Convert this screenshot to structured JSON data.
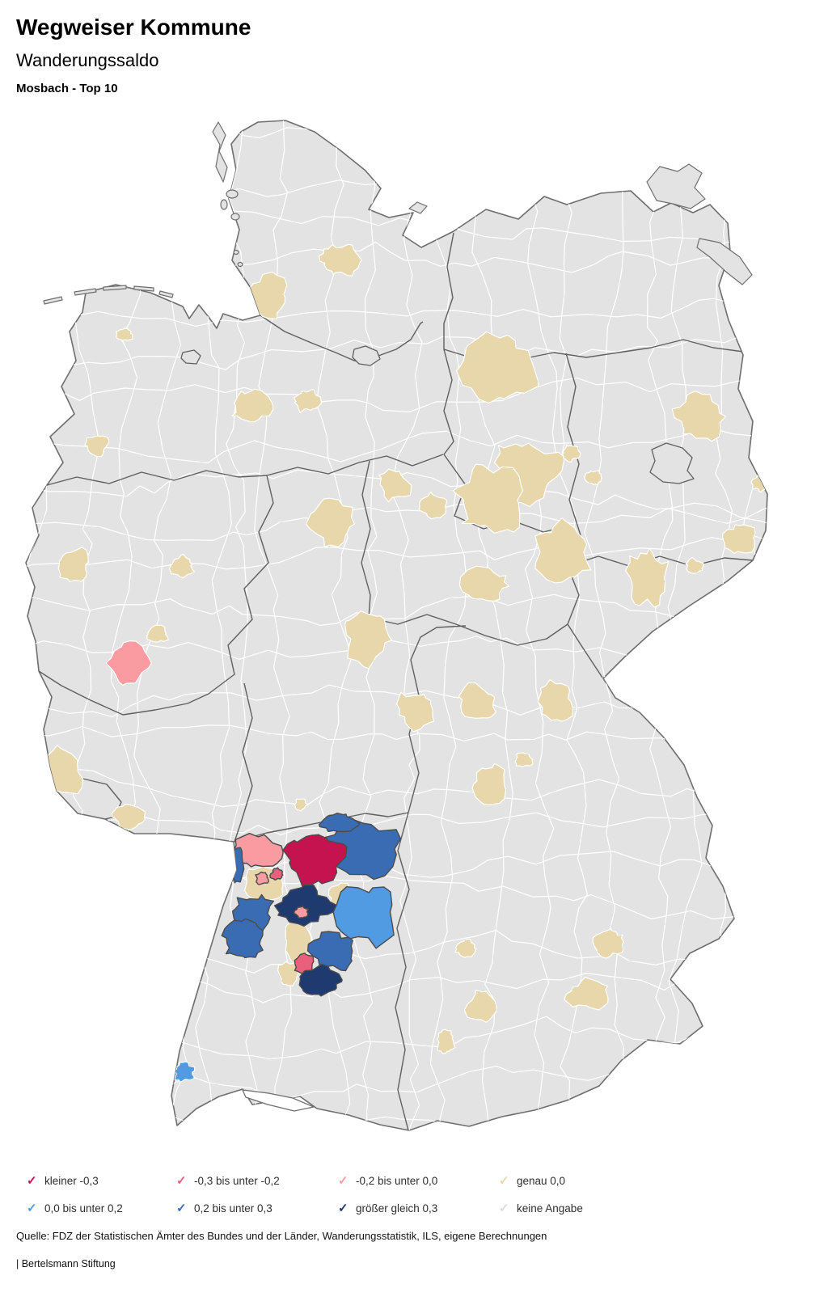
{
  "header": {
    "title": "Wegweiser Kommune",
    "subtitle": "Wanderungssaldo",
    "selection": "Mosbach - Top 10"
  },
  "legend": {
    "check_glyph": "✓",
    "rows": [
      [
        {
          "key": "lt-03",
          "label": "kleiner -0,3"
        },
        {
          "key": "m03-02",
          "label": "-0,3 bis unter -0,2"
        },
        {
          "key": "m02-00",
          "label": "-0,2 bis unter 0,0"
        },
        {
          "key": "eq00",
          "label": "genau 0,0"
        }
      ],
      [
        {
          "key": "p00-02",
          "label": "0,0 bis unter 0,2"
        },
        {
          "key": "p02-03",
          "label": "0,2 bis unter 0,3"
        },
        {
          "key": "ge03",
          "label": "größer gleich 0,3"
        },
        {
          "key": "na",
          "label": "keine Angabe"
        }
      ]
    ]
  },
  "footer": {
    "source": "Quelle: FDZ der Statistischen Ämter des Bundes und der Länder, Wanderungsstatistik, ILS, eigene Berechnungen",
    "attribution": "| Bertelsmann Stiftung"
  },
  "map": {
    "colors": {
      "lt-03": "#c51350",
      "m03-02": "#e8607b",
      "m02-00": "#f99ba1",
      "eq00": "#e7d7ab",
      "p00-02": "#519be2",
      "p02-03": "#3a6cb3",
      "ge03": "#1f3a6e",
      "na": "#dcdcdc"
    },
    "base": {
      "land": "#e3e3e3",
      "district_border": "#ffffff",
      "state_border": "#5f5f5f",
      "coast": "#6e6e6e",
      "water": "#ffffff"
    },
    "region_fields": [
      "category",
      "cx",
      "cy",
      "rx",
      "ry",
      "outlined"
    ],
    "regions": [
      [
        "eq00",
        420,
        322,
        24,
        20,
        0
      ],
      [
        "eq00",
        325,
        368,
        30,
        26,
        0
      ],
      [
        "eq00",
        618,
        452,
        50,
        46,
        0
      ],
      [
        "eq00",
        650,
        582,
        38,
        40,
        0
      ],
      [
        "eq00",
        865,
        515,
        30,
        28,
        0
      ],
      [
        "eq00",
        940,
        598,
        9,
        9,
        0
      ],
      [
        "eq00",
        735,
        591,
        12,
        10,
        0
      ],
      [
        "eq00",
        153,
        414,
        11,
        9,
        0
      ],
      [
        "eq00",
        310,
        502,
        24,
        22,
        0
      ],
      [
        "eq00",
        378,
        495,
        16,
        14,
        0
      ],
      [
        "eq00",
        120,
        550,
        14,
        13,
        0
      ],
      [
        "eq00",
        90,
        698,
        22,
        19,
        0
      ],
      [
        "eq00",
        225,
        700,
        15,
        13,
        0
      ],
      [
        "eq00",
        195,
        785,
        13,
        11,
        0
      ],
      [
        "eq00",
        410,
        648,
        28,
        30,
        0
      ],
      [
        "eq00",
        488,
        600,
        20,
        18,
        0
      ],
      [
        "eq00",
        536,
        626,
        18,
        16,
        0
      ],
      [
        "eq00",
        606,
        618,
        42,
        40,
        0
      ],
      [
        "eq00",
        695,
        683,
        34,
        36,
        0
      ],
      [
        "eq00",
        600,
        725,
        28,
        22,
        0
      ],
      [
        "eq00",
        452,
        792,
        27,
        30,
        0
      ],
      [
        "eq00",
        515,
        878,
        24,
        24,
        0
      ],
      [
        "eq00",
        592,
        868,
        22,
        20,
        0
      ],
      [
        "eq00",
        688,
        868,
        22,
        26,
        0
      ],
      [
        "eq00",
        800,
        715,
        26,
        38,
        0
      ],
      [
        "eq00",
        858,
        700,
        11,
        9,
        0
      ],
      [
        "eq00",
        915,
        665,
        22,
        20,
        0
      ],
      [
        "eq00",
        75,
        955,
        26,
        30,
        0
      ],
      [
        "eq00",
        160,
        1010,
        18,
        16,
        0
      ],
      [
        "eq00",
        605,
        970,
        20,
        26,
        0
      ],
      [
        "eq00",
        648,
        940,
        11,
        9,
        0
      ],
      [
        "eq00",
        755,
        1165,
        18,
        18,
        0
      ],
      [
        "eq00",
        575,
        1172,
        14,
        11,
        0
      ],
      [
        "eq00",
        728,
        1230,
        26,
        18,
        0
      ],
      [
        "eq00",
        595,
        1245,
        18,
        18,
        0
      ],
      [
        "eq00",
        552,
        1288,
        12,
        15,
        0
      ],
      [
        "eq00",
        372,
        995,
        8,
        7,
        0
      ],
      [
        "eq00",
        705,
        560,
        11,
        10,
        0
      ],
      [
        "eq00",
        328,
        1095,
        26,
        22,
        0
      ],
      [
        "eq00",
        324,
        1058,
        10,
        8,
        0
      ],
      [
        "eq00",
        425,
        1112,
        22,
        20,
        0
      ],
      [
        "eq00",
        366,
        1160,
        16,
        26,
        0
      ],
      [
        "eq00",
        358,
        1205,
        14,
        16,
        0
      ],
      [
        "m02-00",
        160,
        820,
        24,
        26,
        0
      ],
      [
        "p00-02",
        228,
        1326,
        13,
        12,
        0
      ],
      [
        "m02-00",
        318,
        1054,
        30,
        24,
        1
      ],
      [
        "m02-00",
        324,
        1086,
        8,
        7,
        1
      ],
      [
        "m03-02",
        342,
        1081,
        8,
        7,
        1
      ],
      [
        "p02-03",
        446,
        1050,
        48,
        36,
        1
      ],
      [
        "p02-03",
        420,
        1018,
        22,
        14,
        1
      ],
      [
        "lt-03",
        390,
        1060,
        38,
        34,
        1
      ],
      [
        "ge03",
        376,
        1120,
        40,
        26,
        1
      ],
      [
        "m02-00",
        373,
        1128,
        9,
        7,
        1
      ],
      [
        "p00-02",
        452,
        1128,
        36,
        40,
        1
      ],
      [
        "p02-03",
        312,
        1130,
        26,
        24,
        1
      ],
      [
        "p02-03",
        300,
        1163,
        24,
        22,
        1
      ],
      [
        "p02-03",
        292,
        1070,
        11,
        20,
        1
      ],
      [
        "p02-03",
        412,
        1176,
        26,
        24,
        1
      ],
      [
        "m03-02",
        375,
        1192,
        13,
        14,
        1
      ],
      [
        "ge03",
        394,
        1214,
        26,
        18,
        1
      ]
    ]
  }
}
